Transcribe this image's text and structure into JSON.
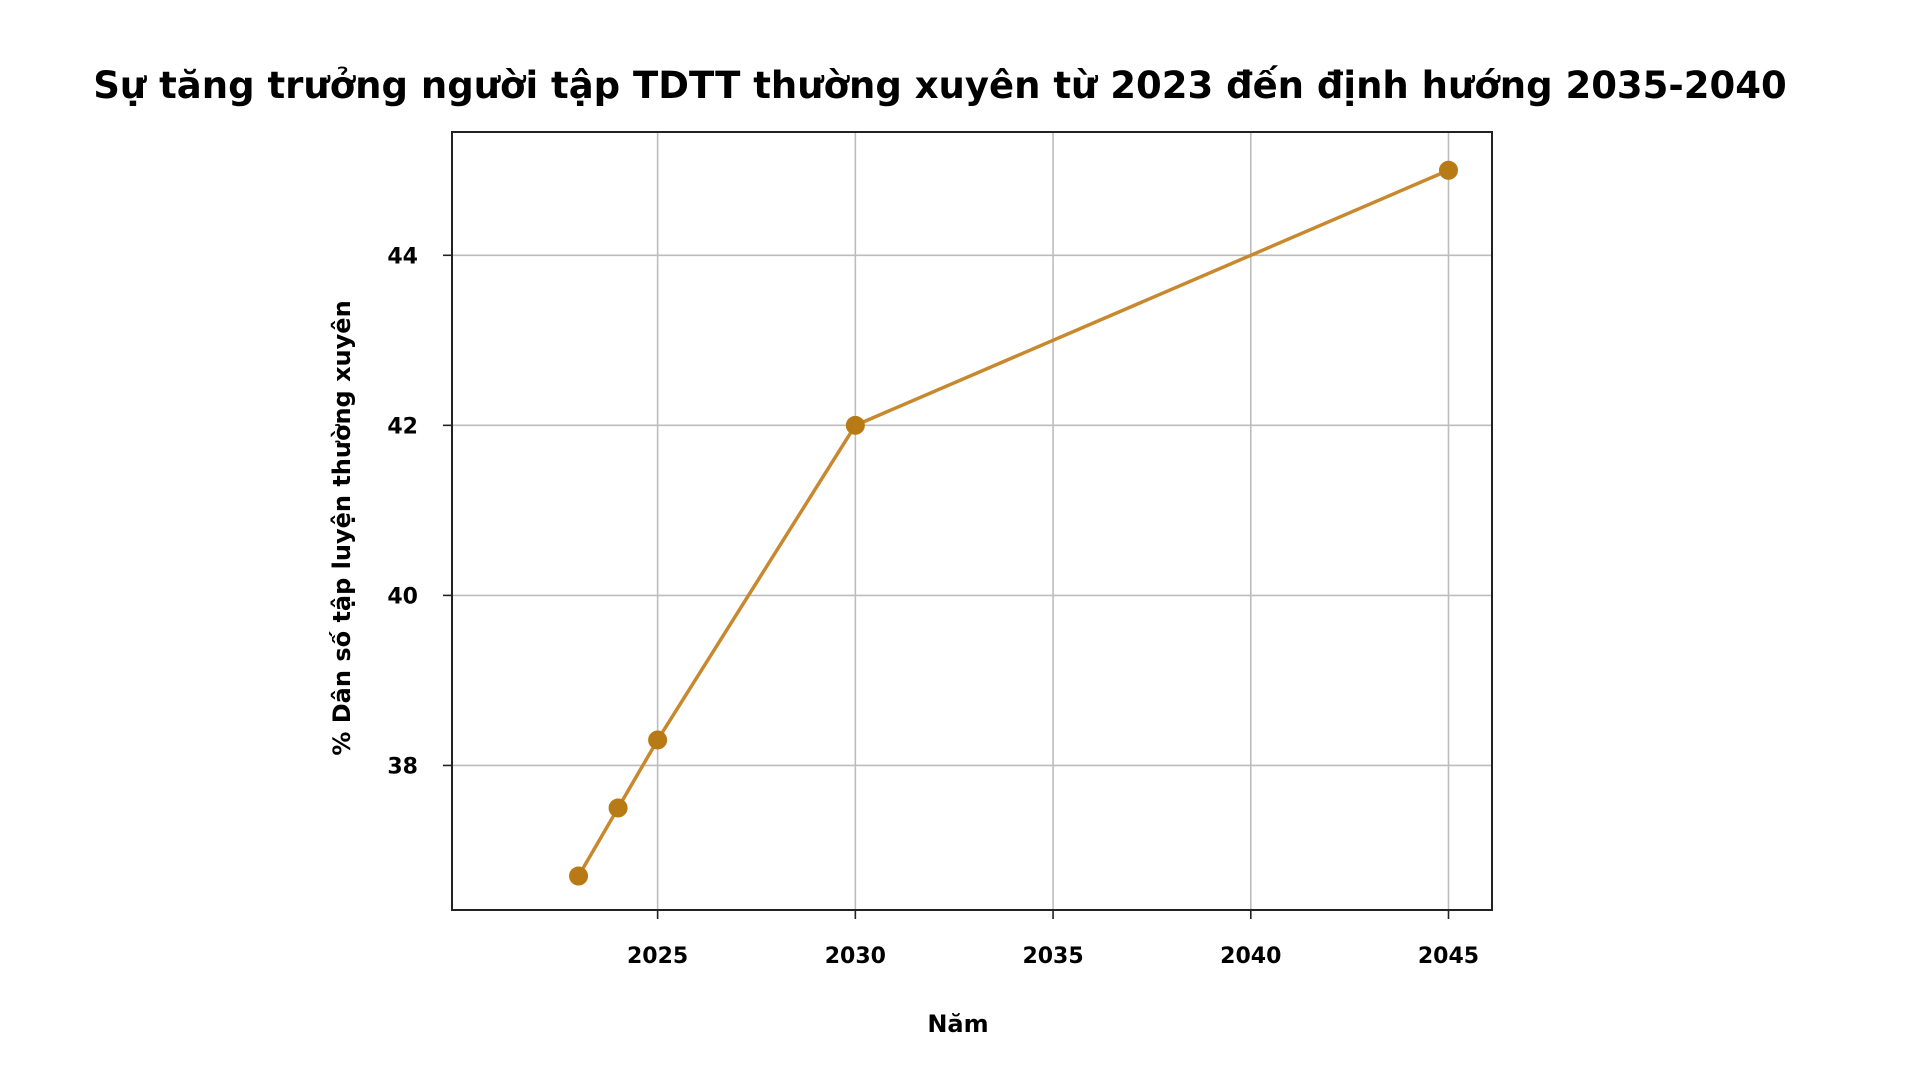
{
  "chart_data": {
    "type": "line",
    "title": "Sự tăng trưởng người tập TDTT thường xuyên từ 2023 đến định hướng 2035-2040",
    "xlabel": "Năm",
    "ylabel": "% Dân số tập luyện thường xuyên",
    "x": [
      2023,
      2024,
      2025,
      2030,
      2045
    ],
    "series": [
      {
        "values": [
          36.7,
          37.5,
          38.3,
          42.0,
          45.0
        ]
      }
    ],
    "xlim": [
      2019.8,
      2046.1
    ],
    "ylim": [
      36.3,
      45.45
    ],
    "xticks": [
      2025,
      2030,
      2035,
      2040,
      2045
    ],
    "xtick_labels": [
      "2025",
      "2030",
      "2035",
      "2040",
      "2045"
    ],
    "yticks": [
      38,
      40,
      42,
      44
    ],
    "ytick_labels": [
      "38",
      "40",
      "42",
      "44"
    ],
    "grid": true,
    "legend": false,
    "line_color": "#c8892e",
    "marker_color": "#b87a14"
  }
}
